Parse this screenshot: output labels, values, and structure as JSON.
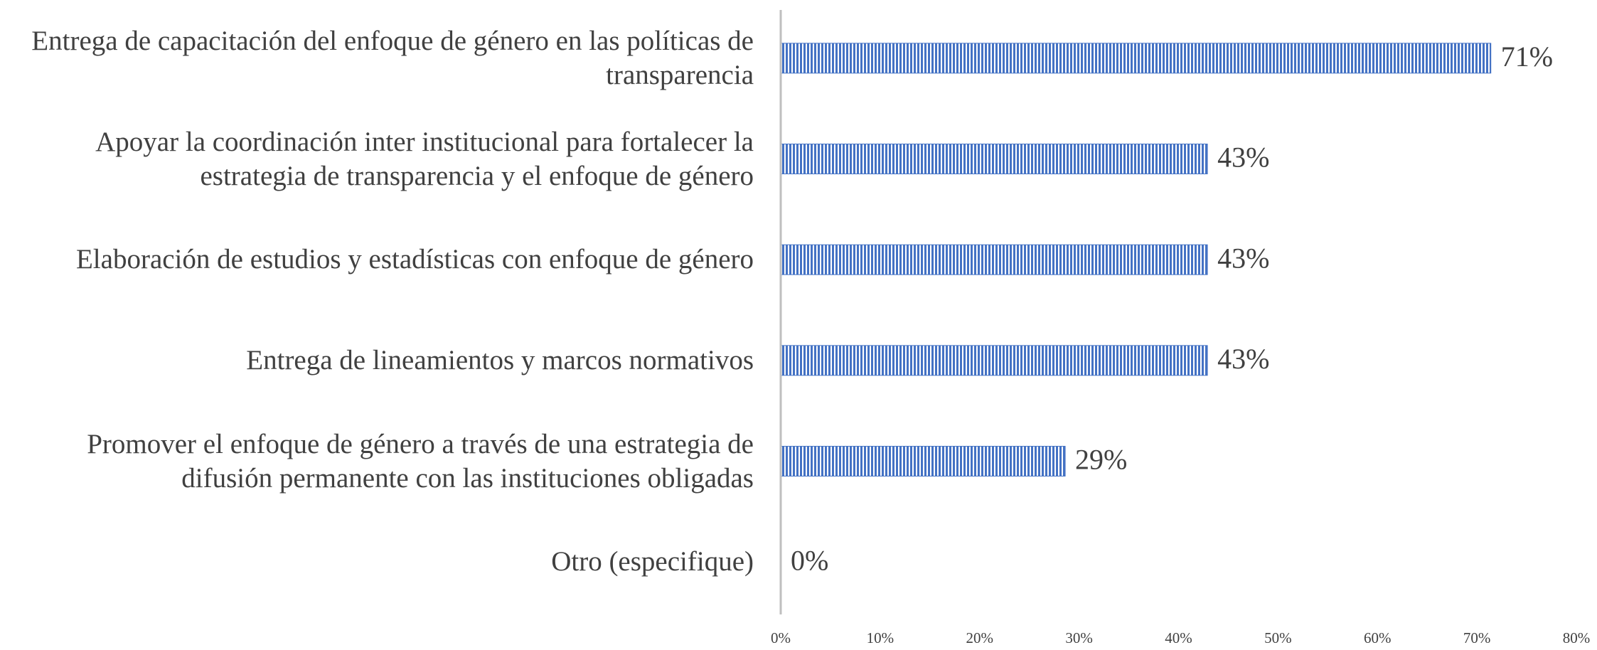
{
  "chart_data": {
    "type": "hbar",
    "categories": [
      "Entrega de capacitación del enfoque de género en las políticas de transparencia",
      "Apoyar la coordinación inter institucional para fortalecer la estrategia de transparencia y el enfoque de género",
      "Elaboración de estudios y estadísticas con enfoque de género",
      "Entrega de lineamientos y marcos normativos",
      "Promover el enfoque de género a través de una estrategia de difusión permanente con las instituciones obligadas",
      "Otro (especifique)"
    ],
    "values": [
      71.4,
      42.9,
      42.9,
      42.9,
      28.6,
      0
    ],
    "value_labels": [
      "71%",
      "43%",
      "43%",
      "43%",
      "29%",
      "0%"
    ],
    "color": "#4472c4",
    "xlim": [
      0,
      80
    ],
    "xticks": [
      {
        "value": 0,
        "label": "0%"
      },
      {
        "value": 10,
        "label": "10%"
      },
      {
        "value": 20,
        "label": "20%"
      },
      {
        "value": 30,
        "label": "30%"
      },
      {
        "value": 40,
        "label": "40%"
      },
      {
        "value": 50,
        "label": "50%"
      },
      {
        "value": 60,
        "label": "60%"
      },
      {
        "value": 70,
        "label": "70%"
      },
      {
        "value": 80,
        "label": "80%"
      }
    ]
  }
}
